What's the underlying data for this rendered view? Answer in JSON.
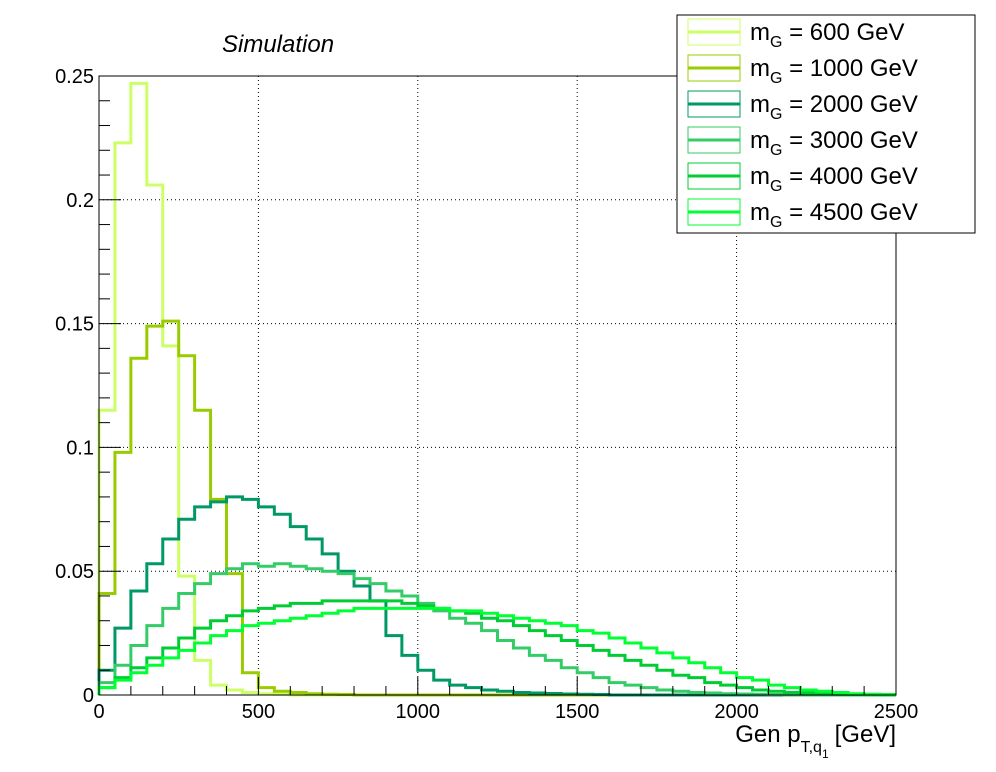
{
  "chart_data": {
    "type": "line",
    "style": "step-histogram",
    "title": "",
    "annotation": "Simulation",
    "xlabel": {
      "main": "Gen p",
      "sub": "T,q",
      "subsub": "1",
      "unit": "[GeV]"
    },
    "ylabel": "",
    "xlim": [
      0,
      2500
    ],
    "ylim": [
      0,
      0.25
    ],
    "bin_width": 50,
    "grid": true,
    "x_ticks": [
      0,
      500,
      1000,
      1500,
      2000,
      2500
    ],
    "x_tick_labels": [
      "0",
      "500",
      "1000",
      "1500",
      "2000",
      "2500"
    ],
    "y_ticks": [
      0,
      0.05,
      0.1,
      0.15,
      0.2,
      0.25
    ],
    "y_tick_labels": [
      "0",
      "0.05",
      "0.1",
      "0.15",
      "0.2",
      "0.25"
    ],
    "legend_position": "top-right",
    "series": [
      {
        "name": "m_G = 600 GeV",
        "label_main": "m",
        "label_sub": "G",
        "label_rest": " = 600 GeV",
        "color": "#ccff66",
        "values": [
          0.115,
          0.223,
          0.247,
          0.206,
          0.141,
          0.048,
          0.014,
          0.004,
          0.002,
          0.001,
          0.0005,
          0.0003,
          0,
          0,
          0,
          0,
          0,
          0,
          0,
          0,
          0,
          0,
          0,
          0,
          0,
          0,
          0,
          0,
          0,
          0,
          0,
          0,
          0,
          0,
          0,
          0,
          0,
          0,
          0,
          0,
          0,
          0,
          0,
          0,
          0,
          0,
          0,
          0,
          0,
          0
        ]
      },
      {
        "name": "m_G = 1000 GeV",
        "label_main": "m",
        "label_sub": "G",
        "label_rest": " = 1000 GeV",
        "color": "#99cc00",
        "values": [
          0.041,
          0.098,
          0.136,
          0.149,
          0.151,
          0.137,
          0.115,
          0.079,
          0.049,
          0.009,
          0.003,
          0.0015,
          0.001,
          0.0005,
          0.0003,
          0.0002,
          0,
          0,
          0,
          0,
          0,
          0,
          0,
          0,
          0,
          0,
          0,
          0,
          0,
          0,
          0,
          0,
          0,
          0,
          0,
          0,
          0,
          0,
          0,
          0,
          0,
          0,
          0,
          0,
          0,
          0,
          0,
          0,
          0,
          0
        ]
      },
      {
        "name": "m_G = 2000 GeV",
        "label_main": "m",
        "label_sub": "G",
        "label_rest": " = 2000 GeV",
        "color": "#009966",
        "values": [
          0.01,
          0.027,
          0.042,
          0.053,
          0.063,
          0.071,
          0.076,
          0.078,
          0.08,
          0.079,
          0.076,
          0.073,
          0.068,
          0.063,
          0.057,
          0.05,
          0.044,
          0.038,
          0.024,
          0.016,
          0.01,
          0.006,
          0.004,
          0.003,
          0.002,
          0.0015,
          0.001,
          0.0008,
          0.0006,
          0.0004,
          0.0003,
          0.0002,
          0,
          0,
          0,
          0,
          0,
          0,
          0,
          0,
          0,
          0,
          0,
          0,
          0,
          0,
          0,
          0,
          0,
          0
        ]
      },
      {
        "name": "m_G = 3000 GeV",
        "label_main": "m",
        "label_sub": "G",
        "label_rest": " = 3000 GeV",
        "color": "#33cc66",
        "values": [
          0.005,
          0.012,
          0.02,
          0.028,
          0.035,
          0.041,
          0.045,
          0.049,
          0.051,
          0.053,
          0.052,
          0.053,
          0.052,
          0.051,
          0.05,
          0.049,
          0.047,
          0.045,
          0.042,
          0.04,
          0.037,
          0.034,
          0.031,
          0.029,
          0.026,
          0.022,
          0.019,
          0.016,
          0.014,
          0.011,
          0.009,
          0.007,
          0.005,
          0.004,
          0.003,
          0.002,
          0.0015,
          0.001,
          0.0008,
          0.0005,
          0.0004,
          0.0003,
          0.0002,
          0,
          0,
          0,
          0,
          0,
          0,
          0
        ]
      },
      {
        "name": "m_G = 4000 GeV",
        "label_main": "m",
        "label_sub": "G",
        "label_rest": " = 4000 GeV",
        "color": "#00cc33",
        "values": [
          0.003,
          0.007,
          0.011,
          0.015,
          0.019,
          0.023,
          0.027,
          0.03,
          0.032,
          0.034,
          0.035,
          0.036,
          0.037,
          0.037,
          0.038,
          0.038,
          0.038,
          0.038,
          0.038,
          0.037,
          0.036,
          0.035,
          0.034,
          0.033,
          0.031,
          0.03,
          0.028,
          0.026,
          0.024,
          0.022,
          0.02,
          0.018,
          0.016,
          0.014,
          0.012,
          0.01,
          0.008,
          0.007,
          0.005,
          0.004,
          0.003,
          0.002,
          0.0015,
          0.001,
          0.0008,
          0.0005,
          0.0003,
          0.0002,
          0.0001,
          0
        ]
      },
      {
        "name": "m_G = 4500 GeV",
        "label_main": "m",
        "label_sub": "G",
        "label_rest": " = 4500 GeV",
        "color": "#00ff33",
        "values": [
          0.003,
          0.006,
          0.009,
          0.012,
          0.015,
          0.018,
          0.021,
          0.024,
          0.026,
          0.028,
          0.029,
          0.03,
          0.031,
          0.032,
          0.033,
          0.034,
          0.035,
          0.035,
          0.035,
          0.035,
          0.035,
          0.035,
          0.034,
          0.034,
          0.033,
          0.032,
          0.031,
          0.03,
          0.029,
          0.028,
          0.026,
          0.025,
          0.023,
          0.021,
          0.019,
          0.017,
          0.015,
          0.013,
          0.011,
          0.009,
          0.007,
          0.006,
          0.004,
          0.003,
          0.002,
          0.0015,
          0.001,
          0.0005,
          0.0003,
          0.0002
        ]
      }
    ]
  }
}
